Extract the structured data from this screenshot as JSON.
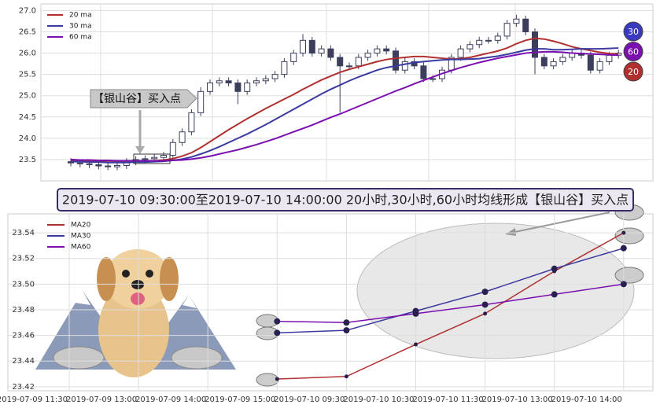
{
  "charts": [
    {
      "type": "candlestick",
      "ylim": [
        23.0,
        27.1
      ],
      "yticks": [
        {
          "value": 23.5,
          "label": "23.5"
        },
        {
          "value": 24,
          "label": "24.0"
        },
        {
          "value": 24.5,
          "label": "24.5"
        },
        {
          "value": 25,
          "label": "25.0"
        },
        {
          "value": 25.5,
          "label": "25.5"
        },
        {
          "value": 26,
          "label": "26.0"
        },
        {
          "value": 26.5,
          "label": "26.5"
        },
        {
          "value": 27,
          "label": "27.0"
        }
      ],
      "candles": {
        "open": [
          23.45,
          23.42,
          23.4,
          23.38,
          23.35,
          23.33,
          23.36,
          23.45,
          23.5,
          23.52,
          23.55,
          23.6,
          23.9,
          24.15,
          24.6,
          25.1,
          25.3,
          25.35,
          25.3,
          25.1,
          25.3,
          25.35,
          25.4,
          25.5,
          25.8,
          26.0,
          26.3,
          26.0,
          26.1,
          25.9,
          25.7,
          25.7,
          25.9,
          26.0,
          26.1,
          26.05,
          25.6,
          25.8,
          25.7,
          25.4,
          25.4,
          25.6,
          25.9,
          26.1,
          26.2,
          26.3,
          26.3,
          26.4,
          26.7,
          26.8,
          26.5,
          25.9,
          25.7,
          25.8,
          25.9,
          26.0,
          25.95,
          25.6,
          25.8,
          25.95
        ],
        "high": [
          23.53,
          23.5,
          23.48,
          23.46,
          23.43,
          23.44,
          23.53,
          23.58,
          23.6,
          23.63,
          23.68,
          23.98,
          24.23,
          24.68,
          25.2,
          25.38,
          25.43,
          25.43,
          25.38,
          25.38,
          25.43,
          25.48,
          25.58,
          25.88,
          26.08,
          26.45,
          26.38,
          26.18,
          26.18,
          25.98,
          25.78,
          25.98,
          26.08,
          26.18,
          26.18,
          26.13,
          25.88,
          25.88,
          25.78,
          25.48,
          25.68,
          25.98,
          26.18,
          26.28,
          26.38,
          26.38,
          26.48,
          26.78,
          26.9,
          26.88,
          26.58,
          25.98,
          25.88,
          25.98,
          26.08,
          26.08,
          26.03,
          25.88,
          26.03,
          26.08
        ],
        "low": [
          23.34,
          23.32,
          23.3,
          23.27,
          23.25,
          23.25,
          23.28,
          23.37,
          23.42,
          23.44,
          23.47,
          23.52,
          23.82,
          24.07,
          24.52,
          25.02,
          25.22,
          25.22,
          24.8,
          25.02,
          25.22,
          25.27,
          25.32,
          25.42,
          25.72,
          25.92,
          25.92,
          25.92,
          25.82,
          24.6,
          25.62,
          25.62,
          25.82,
          25.92,
          25.97,
          25.52,
          25.52,
          25.62,
          25.32,
          25.32,
          25.32,
          25.52,
          25.82,
          26.02,
          26.12,
          26.22,
          26.22,
          26.32,
          26.62,
          26.42,
          25.5,
          25.62,
          25.62,
          25.72,
          25.82,
          25.87,
          25.52,
          25.52,
          25.72,
          25.87
        ],
        "close": [
          23.42,
          23.4,
          23.38,
          23.35,
          23.33,
          23.36,
          23.45,
          23.5,
          23.52,
          23.55,
          23.6,
          23.9,
          24.15,
          24.6,
          25.1,
          25.3,
          25.35,
          25.3,
          25.1,
          25.3,
          25.35,
          25.4,
          25.5,
          25.8,
          26.0,
          26.3,
          26.0,
          26.1,
          25.9,
          25.7,
          25.7,
          25.9,
          26.0,
          26.1,
          26.05,
          25.6,
          25.8,
          25.7,
          25.4,
          25.4,
          25.6,
          25.9,
          26.1,
          26.2,
          26.3,
          26.3,
          26.4,
          26.7,
          26.8,
          26.5,
          25.9,
          25.7,
          25.8,
          25.9,
          26.0,
          25.95,
          25.6,
          25.8,
          25.95,
          26.0
        ]
      },
      "series": [
        {
          "name": "20 ma",
          "color": "#b03030",
          "values": [
            23.48,
            23.47,
            23.46,
            23.45,
            23.44,
            23.44,
            23.44,
            23.45,
            23.46,
            23.47,
            23.49,
            23.52,
            23.58,
            23.66,
            23.78,
            23.92,
            24.06,
            24.2,
            24.33,
            24.46,
            24.58,
            24.7,
            24.81,
            24.92,
            25.03,
            25.15,
            25.26,
            25.37,
            25.46,
            25.55,
            25.62,
            25.68,
            25.74,
            25.8,
            25.85,
            25.88,
            25.9,
            25.92,
            25.92,
            25.9,
            25.88,
            25.86,
            25.87,
            25.9,
            25.95,
            26.0,
            26.05,
            26.12,
            26.22,
            26.3,
            26.35,
            26.33,
            26.28,
            26.22,
            26.15,
            26.1,
            26.06,
            26.02,
            25.99,
            25.98
          ]
        },
        {
          "name": "30 ma",
          "color": "#3a3aa0",
          "values": [
            23.45,
            23.45,
            23.44,
            23.44,
            23.43,
            23.43,
            23.43,
            23.44,
            23.44,
            23.45,
            23.46,
            23.48,
            23.51,
            23.56,
            23.63,
            23.71,
            23.8,
            23.9,
            24.0,
            24.1,
            24.21,
            24.32,
            24.44,
            24.56,
            24.68,
            24.8,
            24.92,
            25.04,
            25.15,
            25.25,
            25.35,
            25.44,
            25.52,
            25.6,
            25.66,
            25.7,
            25.74,
            25.78,
            25.8,
            25.82,
            25.84,
            25.85,
            25.85,
            25.86,
            25.87,
            25.9,
            25.93,
            25.97,
            26.02,
            26.07,
            26.1,
            26.1,
            26.08,
            26.08,
            26.09,
            26.1,
            26.1,
            26.1,
            26.11,
            26.12
          ]
        },
        {
          "name": "60 ma",
          "color": "#7a10b0",
          "values": [
            23.5,
            23.49,
            23.49,
            23.48,
            23.48,
            23.47,
            23.47,
            23.47,
            23.47,
            23.47,
            23.47,
            23.48,
            23.49,
            23.51,
            23.54,
            23.58,
            23.63,
            23.68,
            23.73,
            23.79,
            23.85,
            23.92,
            23.99,
            24.07,
            24.15,
            24.23,
            24.31,
            24.4,
            24.49,
            24.57,
            24.66,
            24.75,
            24.84,
            24.93,
            25.02,
            25.11,
            25.19,
            25.28,
            25.36,
            25.44,
            25.52,
            25.59,
            25.66,
            25.72,
            25.78,
            25.83,
            25.88,
            25.92,
            25.96,
            26.0,
            26.02,
            26.03,
            26.03,
            26.02,
            26.0,
            25.99,
            25.98,
            25.97,
            25.96,
            25.95
          ]
        }
      ],
      "badges": [
        {
          "text": "30",
          "color": "#3a3ac0"
        },
        {
          "text": "60",
          "color": "#7a10b0"
        },
        {
          "text": "20",
          "color": "#b03030"
        }
      ],
      "annotation": "【银山谷】买入点",
      "legend": "upper left",
      "grid": true
    },
    {
      "type": "line",
      "banner": "2019-07-10 09:30:00至2019-07-10 14:00:00 20小时,30小时,60小时均线形成【银山谷】买入点",
      "categories": [
        "2019-07-09 11:30",
        "2019-07-09 13:00",
        "2019-07-09 14:00",
        "2019-07-09 15:00",
        "2019-07-10 09:30",
        "2019-07-10 10:30",
        "2019-07-10 11:30",
        "2019-07-10 13:00",
        "2019-07-10 14:00"
      ],
      "ylim": [
        23.415,
        23.556
      ],
      "yticks": [
        23.42,
        23.44,
        23.46,
        23.48,
        {
          "value": 23.5,
          "label": "23.50"
        },
        23.52,
        23.54
      ],
      "series": [
        {
          "name": "MA20",
          "color": "#b03030",
          "values": [
            null,
            null,
            null,
            23.426,
            23.428,
            23.453,
            23.477,
            23.51,
            23.54
          ]
        },
        {
          "name": "MA30",
          "color": "#3a3aa0",
          "values": [
            null,
            null,
            null,
            23.462,
            23.464,
            23.479,
            23.494,
            23.512,
            23.528
          ]
        },
        {
          "name": "MA60",
          "color": "#7a10b0",
          "values": [
            null,
            null,
            null,
            23.471,
            23.47,
            23.477,
            23.484,
            23.492,
            23.5
          ]
        }
      ],
      "legend": "upper left",
      "grid": true
    }
  ]
}
